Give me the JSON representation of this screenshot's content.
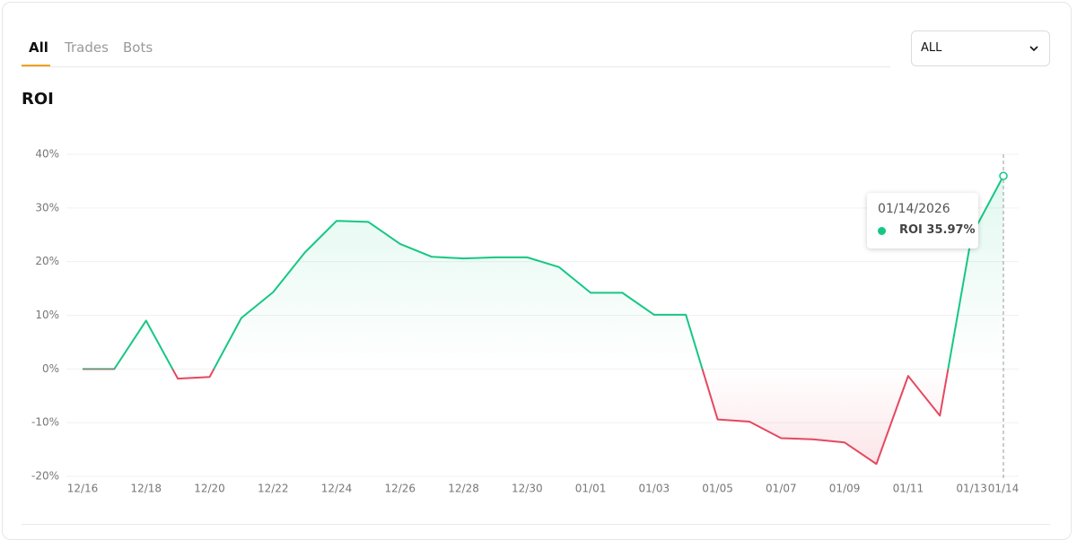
{
  "tabs": [
    "All",
    "Trades",
    "Bots"
  ],
  "filter": "ALL",
  "tooltip": {
    "title": "01/14/2026",
    "text": "ROI 35.97%"
  },
  "chart_data": {
    "type": "line",
    "title": "ROI",
    "categories": [
      "12/16",
      null,
      "12/18",
      null,
      "12/20",
      null,
      "12/22",
      null,
      "12/24",
      null,
      "12/26",
      null,
      "12/28",
      null,
      "12/30",
      null,
      "01/01",
      null,
      "01/03",
      null,
      "01/05",
      null,
      "01/07",
      null,
      "01/09",
      null,
      "01/11",
      null,
      "01/13",
      "01/14"
    ],
    "values": [
      0,
      0,
      9,
      -1.8,
      -1.5,
      9.5,
      14.3,
      21.7,
      27.6,
      27.4,
      23.3,
      20.9,
      20.6,
      20.8,
      20.8,
      19,
      14.2,
      14.2,
      10.1,
      10.1,
      -9.4,
      -9.8,
      -12.9,
      -13.1,
      -13.7,
      -17.7,
      -1.3,
      -8.7,
      24.9,
      35.97
    ],
    "ylim": [
      -20,
      40
    ],
    "yticks": [
      {
        "value": -20,
        "label": "-20%"
      },
      {
        "value": -10,
        "label": "-10%"
      },
      {
        "value": 0,
        "label": "0%"
      },
      {
        "value": 10,
        "label": "10%"
      },
      {
        "value": 20,
        "label": "20%"
      },
      {
        "value": 30,
        "label": "30%"
      },
      {
        "value": 40,
        "label": "40%"
      }
    ],
    "grid": true,
    "positive_color": "#16c784",
    "negative_color": "#e5485f"
  }
}
